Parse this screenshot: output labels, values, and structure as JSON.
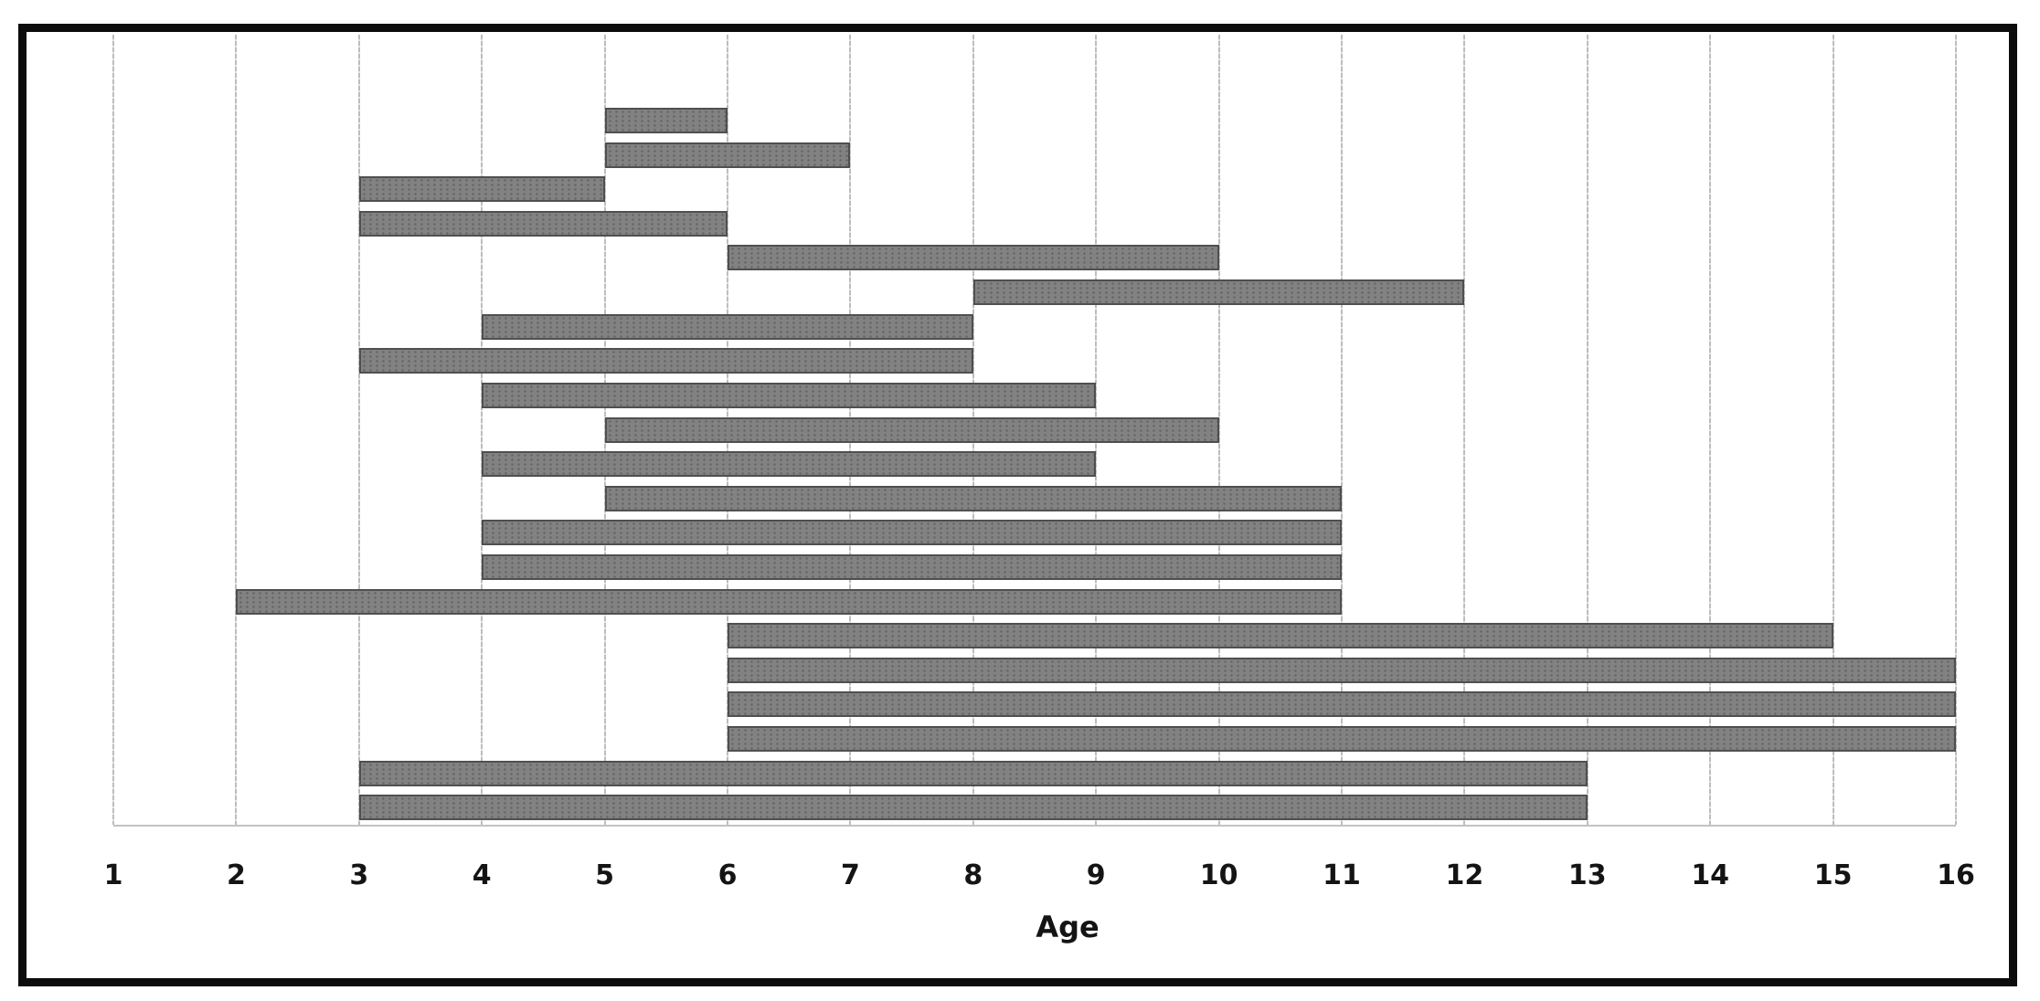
{
  "chart_data": {
    "type": "bar",
    "subtype": "horizontal-range-gantt",
    "title": "",
    "xlabel": "Age",
    "ylabel": "",
    "xlim": [
      1,
      16
    ],
    "x_ticks": [
      "1",
      "2",
      "3",
      "4",
      "5",
      "6",
      "7",
      "8",
      "9",
      "10",
      "11",
      "12",
      "13",
      "14",
      "15",
      "16"
    ],
    "grid": true,
    "legend": false,
    "empty_leading_slots": 2,
    "bars": [
      {
        "start": 5,
        "end": 6
      },
      {
        "start": 5,
        "end": 7
      },
      {
        "start": 3,
        "end": 5
      },
      {
        "start": 3,
        "end": 6
      },
      {
        "start": 6,
        "end": 10
      },
      {
        "start": 8,
        "end": 12
      },
      {
        "start": 4,
        "end": 8
      },
      {
        "start": 3,
        "end": 8
      },
      {
        "start": 4,
        "end": 9
      },
      {
        "start": 5,
        "end": 10
      },
      {
        "start": 4,
        "end": 9
      },
      {
        "start": 5,
        "end": 11
      },
      {
        "start": 4,
        "end": 11
      },
      {
        "start": 4,
        "end": 11
      },
      {
        "start": 2,
        "end": 11
      },
      {
        "start": 6,
        "end": 15
      },
      {
        "start": 6,
        "end": 16
      },
      {
        "start": 6,
        "end": 16
      },
      {
        "start": 6,
        "end": 16
      },
      {
        "start": 3,
        "end": 13
      },
      {
        "start": 3,
        "end": 13
      }
    ],
    "colors": {
      "bar_fill": "#828282",
      "bar_border": "#4f4f4f",
      "gridline": "#bdbdbd",
      "frame": "#0c0c0c",
      "text": "#141414",
      "background": "#ffffff"
    }
  }
}
